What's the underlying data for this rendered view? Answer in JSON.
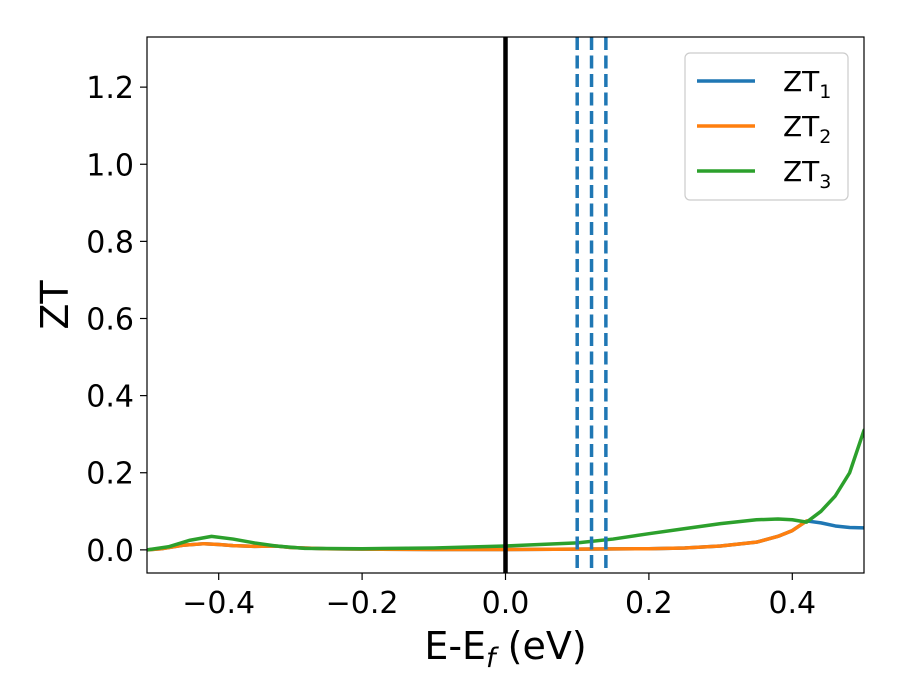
{
  "chart_data": {
    "type": "line",
    "title": "",
    "xlabel": {
      "base": "E-E",
      "sub": "f",
      "rest": " (eV)"
    },
    "ylabel": "ZT",
    "xlim": [
      -0.5,
      0.5
    ],
    "ylim": [
      -0.06,
      1.33
    ],
    "xticks": [
      -0.4,
      -0.2,
      0.0,
      0.2,
      0.4
    ],
    "xtick_labels": [
      "−0.4",
      "−0.2",
      "0.0",
      "0.2",
      "0.4"
    ],
    "yticks": [
      0.0,
      0.2,
      0.4,
      0.6,
      0.8,
      1.0,
      1.2
    ],
    "ytick_labels": [
      "0.0",
      "0.2",
      "0.4",
      "0.6",
      "0.8",
      "1.0",
      "1.2"
    ],
    "grid": false,
    "legend_position": "top-right",
    "series": [
      {
        "name": "ZT",
        "subscript": "1",
        "color": "#1f77b4",
        "x": [
          -0.5,
          -0.48,
          -0.45,
          -0.42,
          -0.4,
          -0.38,
          -0.35,
          -0.32,
          -0.3,
          -0.25,
          -0.2,
          -0.1,
          0.0,
          0.1,
          0.2,
          0.25,
          0.3,
          0.35,
          0.38,
          0.4,
          0.42,
          0.44,
          0.46,
          0.48,
          0.5
        ],
        "y": [
          0.0,
          0.003,
          0.012,
          0.016,
          0.014,
          0.011,
          0.009,
          0.01,
          0.006,
          0.003,
          0.002,
          0.001,
          0.001,
          0.002,
          0.003,
          0.005,
          0.01,
          0.02,
          0.035,
          0.05,
          0.075,
          0.07,
          0.062,
          0.058,
          0.057
        ]
      },
      {
        "name": "ZT",
        "subscript": "2",
        "color": "#ff7f0e",
        "x": [
          -0.5,
          -0.48,
          -0.45,
          -0.42,
          -0.4,
          -0.38,
          -0.35,
          -0.32,
          -0.3,
          -0.25,
          -0.2,
          -0.1,
          0.0,
          0.1,
          0.2,
          0.25,
          0.3,
          0.35,
          0.38,
          0.4,
          0.42
        ],
        "y": [
          0.0,
          0.003,
          0.012,
          0.016,
          0.014,
          0.011,
          0.009,
          0.01,
          0.006,
          0.003,
          0.002,
          0.001,
          0.001,
          0.002,
          0.003,
          0.005,
          0.01,
          0.02,
          0.035,
          0.05,
          0.075
        ]
      },
      {
        "name": "ZT",
        "subscript": "3",
        "color": "#2ca02c",
        "x": [
          -0.5,
          -0.47,
          -0.44,
          -0.41,
          -0.38,
          -0.35,
          -0.32,
          -0.28,
          -0.2,
          -0.1,
          0.0,
          0.1,
          0.15,
          0.2,
          0.25,
          0.3,
          0.35,
          0.38,
          0.4,
          0.42,
          0.44,
          0.46,
          0.48,
          0.5
        ],
        "y": [
          0.0,
          0.008,
          0.025,
          0.035,
          0.028,
          0.018,
          0.01,
          0.004,
          0.003,
          0.005,
          0.01,
          0.018,
          0.028,
          0.042,
          0.055,
          0.068,
          0.078,
          0.08,
          0.078,
          0.072,
          0.1,
          0.14,
          0.2,
          0.31
        ]
      }
    ],
    "vlines": [
      {
        "x": 0.0,
        "style": "solid",
        "color": "#000000"
      },
      {
        "x": 0.1,
        "style": "dashed",
        "color": "#1f77b4"
      },
      {
        "x": 0.12,
        "style": "dashed",
        "color": "#1f77b4"
      },
      {
        "x": 0.14,
        "style": "dashed",
        "color": "#1f77b4"
      }
    ]
  }
}
